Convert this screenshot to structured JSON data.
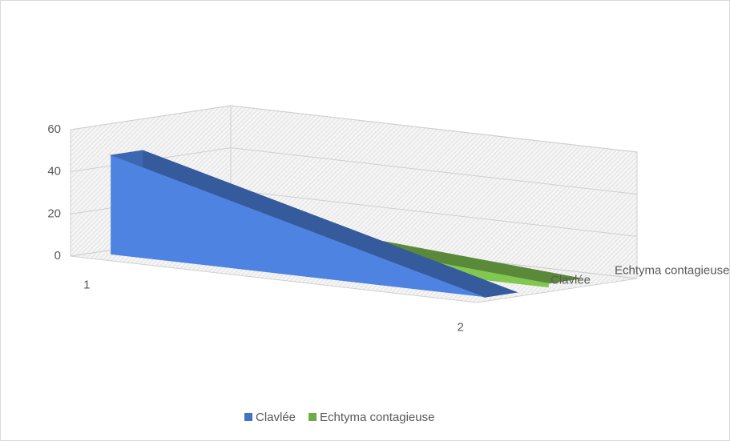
{
  "chart_data": {
    "type": "area3d",
    "categories": [
      "1",
      "2"
    ],
    "series": [
      {
        "name": "Clavlée",
        "color": "#4472c4",
        "values": [
          47,
          0
        ]
      },
      {
        "name": "Echtyma contagieuse",
        "color": "#70ad47",
        "values": [
          15,
          2
        ]
      }
    ],
    "ylim": [
      0,
      60
    ],
    "yticks": [
      0,
      20,
      40,
      60
    ],
    "grid": true,
    "legend": "bottom"
  }
}
